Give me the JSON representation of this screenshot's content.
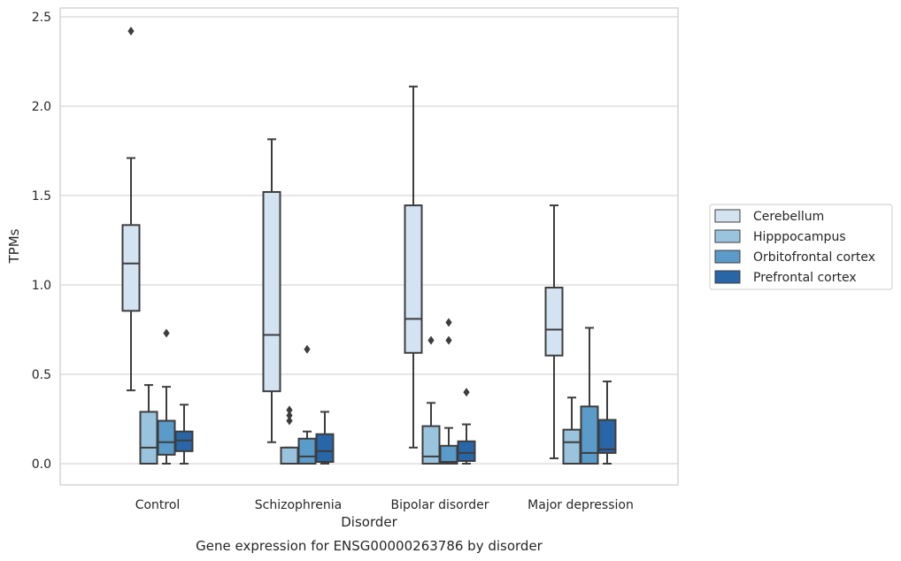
{
  "chart_data": {
    "type": "box",
    "title": "Gene expression for ENSG00000263786 by disorder",
    "xlabel": "Disorder",
    "ylabel": "TPMs",
    "categories": [
      "Control",
      "Schizophrenia",
      "Bipolar disorder",
      "Major depression"
    ],
    "yticks": [
      "0.0",
      "0.5",
      "1.0",
      "1.5",
      "2.0",
      "2.5"
    ],
    "ylim": [
      -0.12,
      2.55
    ],
    "grid": "horizontal",
    "legend_position": "right",
    "series": [
      {
        "name": "Cerebellum",
        "color": "#d3e3f2",
        "boxes": [
          {
            "whislo": 0.41,
            "q1": 0.855,
            "med": 1.12,
            "q3": 1.335,
            "whishi": 1.71,
            "fliers": [
              2.42
            ]
          },
          {
            "whislo": 0.12,
            "q1": 0.405,
            "med": 0.72,
            "q3": 1.52,
            "whishi": 1.815,
            "fliers": []
          },
          {
            "whislo": 0.09,
            "q1": 0.62,
            "med": 0.81,
            "q3": 1.445,
            "whishi": 2.11,
            "fliers": []
          },
          {
            "whislo": 0.03,
            "q1": 0.605,
            "med": 0.75,
            "q3": 0.985,
            "whishi": 1.445,
            "fliers": []
          }
        ]
      },
      {
        "name": "Hipppocampus",
        "color": "#9ac3de",
        "boxes": [
          {
            "whislo": 0.0,
            "q1": 0.0,
            "med": 0.09,
            "q3": 0.29,
            "whishi": 0.44,
            "fliers": []
          },
          {
            "whislo": 0.0,
            "q1": 0.0,
            "med": 0.0,
            "q3": 0.09,
            "whishi": 0.09,
            "fliers": [
              0.24,
              0.27,
              0.3
            ]
          },
          {
            "whislo": 0.0,
            "q1": 0.0,
            "med": 0.04,
            "q3": 0.21,
            "whishi": 0.34,
            "fliers": [
              0.69
            ]
          },
          {
            "whislo": 0.0,
            "q1": 0.0,
            "med": 0.12,
            "q3": 0.19,
            "whishi": 0.37,
            "fliers": []
          }
        ]
      },
      {
        "name": "Orbitofrontal cortex",
        "color": "#5a9bc9",
        "boxes": [
          {
            "whislo": 0.0,
            "q1": 0.05,
            "med": 0.12,
            "q3": 0.24,
            "whishi": 0.43,
            "fliers": [
              0.73
            ]
          },
          {
            "whislo": 0.0,
            "q1": 0.0,
            "med": 0.04,
            "q3": 0.14,
            "whishi": 0.18,
            "fliers": [
              0.64
            ]
          },
          {
            "whislo": 0.0,
            "q1": 0.0,
            "med": 0.01,
            "q3": 0.1,
            "whishi": 0.2,
            "fliers": [
              0.69,
              0.79
            ]
          },
          {
            "whislo": 0.0,
            "q1": 0.0,
            "med": 0.06,
            "q3": 0.32,
            "whishi": 0.76,
            "fliers": []
          }
        ]
      },
      {
        "name": "Prefrontal cortex",
        "color": "#2866a7",
        "boxes": [
          {
            "whislo": 0.0,
            "q1": 0.07,
            "med": 0.13,
            "q3": 0.18,
            "whishi": 0.33,
            "fliers": []
          },
          {
            "whislo": 0.0,
            "q1": 0.01,
            "med": 0.07,
            "q3": 0.165,
            "whishi": 0.29,
            "fliers": []
          },
          {
            "whislo": 0.0,
            "q1": 0.015,
            "med": 0.06,
            "q3": 0.125,
            "whishi": 0.22,
            "fliers": [
              0.4
            ]
          },
          {
            "whislo": 0.0,
            "q1": 0.06,
            "med": 0.08,
            "q3": 0.245,
            "whishi": 0.46,
            "fliers": []
          }
        ]
      }
    ]
  }
}
